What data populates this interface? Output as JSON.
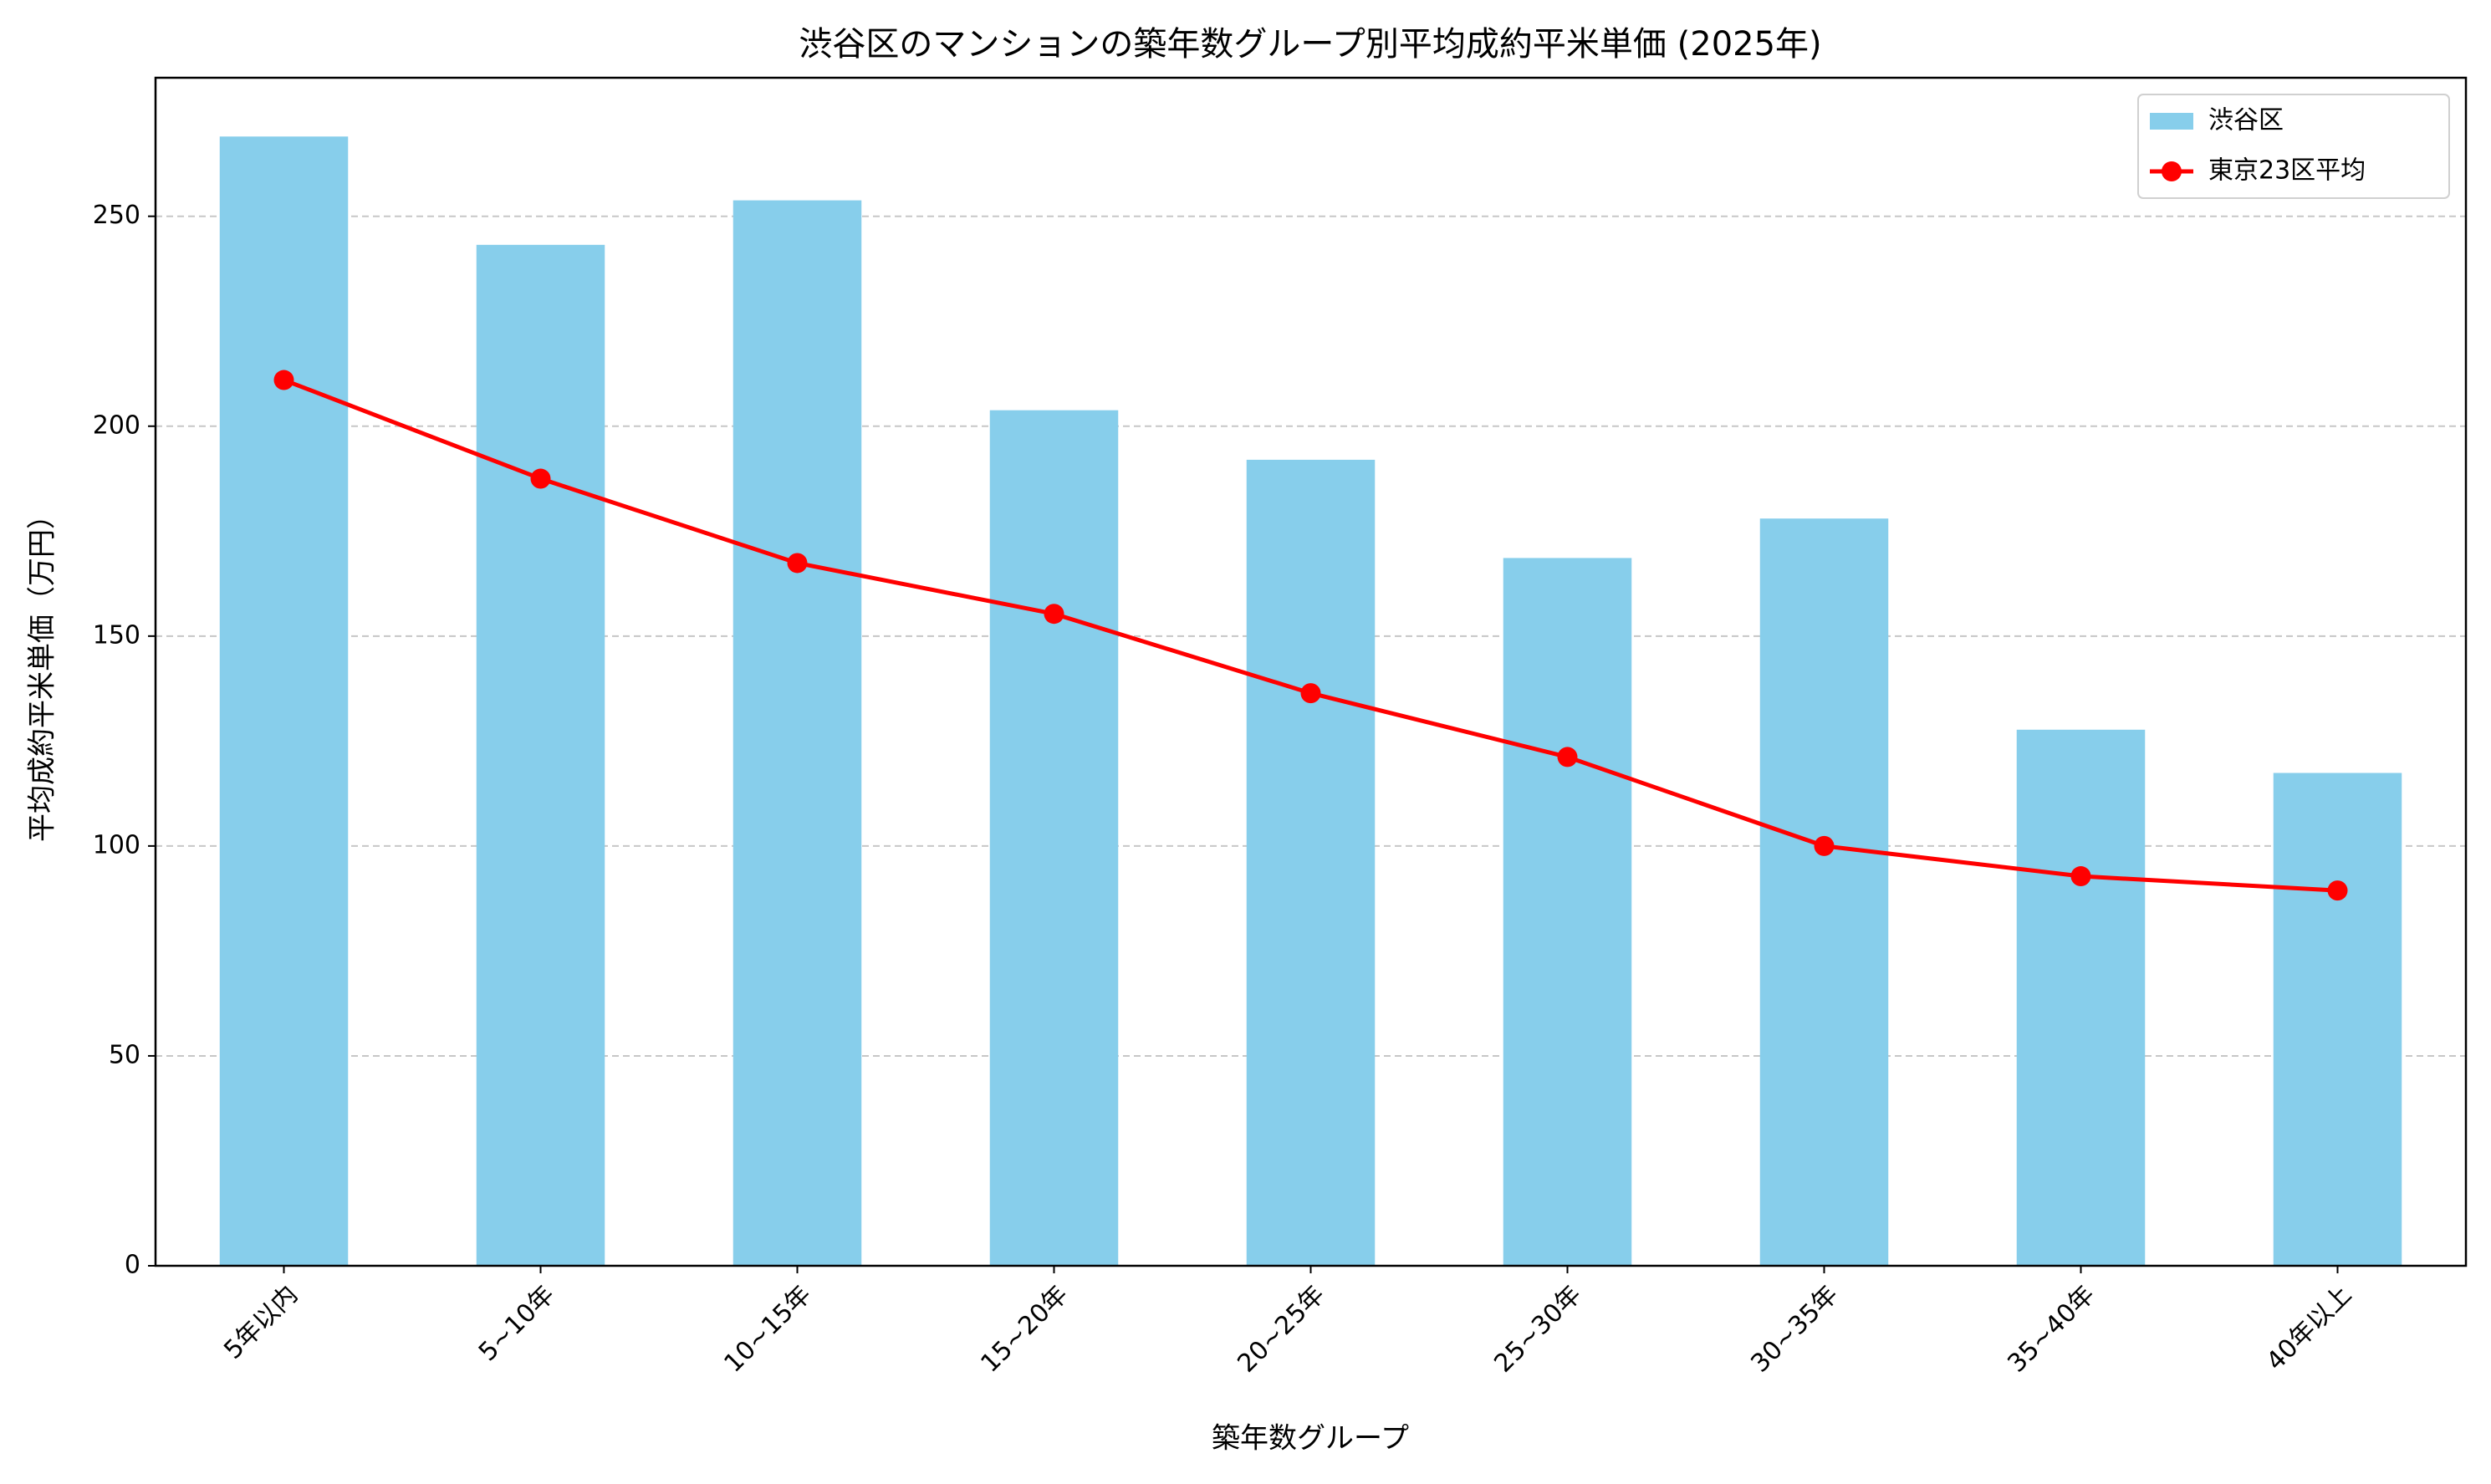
{
  "chart_data": {
    "type": "bar",
    "title": "渋谷区のマンションの築年数グループ別平均成約平米単価 (2025年)",
    "xlabel": "築年数グループ",
    "ylabel": "平均成約平米単価（万円）",
    "categories": [
      "5年以内",
      "5~10年",
      "10~15年",
      "15~20年",
      "20~25年",
      "25~30年",
      "30~35年",
      "35~40年",
      "40年以上"
    ],
    "series": [
      {
        "name": "渋谷区",
        "type": "bar",
        "color": "#87ceeb",
        "values": [
          269,
          243.2,
          253.8,
          203.8,
          192,
          168.6,
          178,
          127.7,
          117.4
        ]
      },
      {
        "name": "東京23区平均",
        "type": "line",
        "color": "#ff0000",
        "values": [
          211,
          187.5,
          167.4,
          155.3,
          136.4,
          121.2,
          100,
          92.8,
          89.4
        ]
      }
    ],
    "ylim": [
      0,
      283
    ],
    "yticks": [
      0,
      50,
      100,
      150,
      200,
      250
    ],
    "grid": true,
    "legend": "upper-right"
  }
}
